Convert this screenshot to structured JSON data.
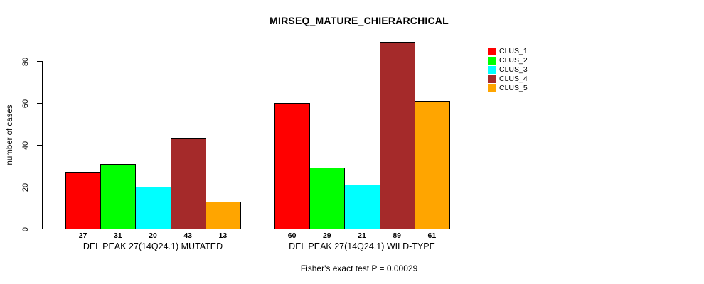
{
  "chart_data": {
    "type": "bar",
    "title": "MIRSEQ_MATURE_CHIERARCHICAL",
    "ylabel": "number of cases",
    "xlabel": "",
    "yticks": [
      0,
      20,
      40,
      60,
      80
    ],
    "ylim": [
      0,
      89
    ],
    "grid": false,
    "bar_borders": "#000000",
    "legend_position": "top-right",
    "categories": [
      "DEL PEAK 27(14Q24.1) MUTATED",
      "DEL PEAK 27(14Q24.1) WILD-TYPE"
    ],
    "groups": [
      {
        "label": "DEL PEAK 27(14Q24.1) MUTATED",
        "values": [
          27,
          31,
          20,
          43,
          13
        ]
      },
      {
        "label": "DEL PEAK 27(14Q24.1) WILD-TYPE",
        "values": [
          60,
          29,
          21,
          89,
          61
        ]
      }
    ],
    "series": [
      {
        "name": "CLUS_1",
        "color": "#FF0000",
        "values": [
          27,
          60
        ]
      },
      {
        "name": "CLUS_2",
        "color": "#00FF00",
        "values": [
          31,
          29
        ]
      },
      {
        "name": "CLUS_3",
        "color": "#00FFFF",
        "values": [
          20,
          21
        ]
      },
      {
        "name": "CLUS_4",
        "color": "#A52A2A",
        "values": [
          43,
          89
        ]
      },
      {
        "name": "CLUS_5",
        "color": "#FFA500",
        "values": [
          13,
          61
        ]
      }
    ],
    "bar_value_labels_shown": true,
    "annotation": "Fisher's exact test P = 0.00029"
  }
}
